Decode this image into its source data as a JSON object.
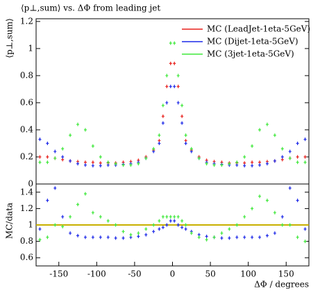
{
  "chart_data": [
    {
      "type": "scatter",
      "title": "⟨p⊥,sum⟩ vs. ΔΦ from leading jet",
      "ylabel": "⟨p⊥,sum⟩",
      "x": [
        -175,
        -165,
        -155,
        -145,
        -135,
        -125,
        -115,
        -105,
        -95,
        -85,
        -75,
        -65,
        -55,
        -45,
        -35,
        -25,
        -17.5,
        -12.5,
        -7.5,
        -2.5,
        2.5,
        7.5,
        12.5,
        17.5,
        25,
        35,
        45,
        55,
        65,
        75,
        85,
        95,
        105,
        115,
        125,
        135,
        145,
        155,
        165,
        175
      ],
      "series": [
        {
          "name": "MC (LeadJet-1eta-5GeV)",
          "color": "#e8201c",
          "values": [
            0.2,
            0.2,
            0.19,
            0.18,
            0.17,
            0.165,
            0.16,
            0.16,
            0.155,
            0.155,
            0.155,
            0.16,
            0.165,
            0.175,
            0.2,
            0.25,
            0.32,
            0.5,
            0.72,
            0.89,
            0.89,
            0.72,
            0.5,
            0.32,
            0.25,
            0.2,
            0.175,
            0.165,
            0.16,
            0.155,
            0.155,
            0.155,
            0.16,
            0.16,
            0.165,
            0.17,
            0.18,
            0.19,
            0.2,
            0.2
          ]
        },
        {
          "name": "MC (Dijet-1eta-5GeV)",
          "color": "#1c28e8",
          "values": [
            0.33,
            0.3,
            0.24,
            0.2,
            0.17,
            0.15,
            0.14,
            0.135,
            0.135,
            0.14,
            0.14,
            0.145,
            0.15,
            0.16,
            0.19,
            0.24,
            0.3,
            0.45,
            0.6,
            0.72,
            0.72,
            0.6,
            0.45,
            0.3,
            0.24,
            0.19,
            0.16,
            0.15,
            0.145,
            0.14,
            0.14,
            0.135,
            0.135,
            0.14,
            0.15,
            0.17,
            0.2,
            0.24,
            0.3,
            0.33
          ]
        },
        {
          "name": "MC (3jet-1eta-5GeV)",
          "color": "#3ee83a",
          "values": [
            0.16,
            0.16,
            0.19,
            0.26,
            0.36,
            0.44,
            0.4,
            0.28,
            0.2,
            0.16,
            0.15,
            0.14,
            0.14,
            0.15,
            0.19,
            0.26,
            0.36,
            0.58,
            0.8,
            1.04,
            1.04,
            0.8,
            0.58,
            0.36,
            0.26,
            0.19,
            0.15,
            0.14,
            0.14,
            0.15,
            0.16,
            0.2,
            0.28,
            0.4,
            0.44,
            0.36,
            0.26,
            0.19,
            0.16,
            0.16
          ]
        }
      ],
      "xlim": [
        -180,
        180
      ],
      "ylim": [
        0,
        1.22
      ],
      "yticks": [
        0,
        0.2,
        0.4,
        0.6,
        0.8,
        1,
        1.2
      ],
      "legend": "upper right"
    },
    {
      "type": "scatter",
      "ylabel": "MC/data",
      "xlabel": "ΔΦ / degrees",
      "x": [
        -175,
        -165,
        -155,
        -145,
        -135,
        -125,
        -115,
        -105,
        -95,
        -85,
        -75,
        -65,
        -55,
        -45,
        -35,
        -25,
        -17.5,
        -12.5,
        -7.5,
        -2.5,
        2.5,
        7.5,
        12.5,
        17.5,
        25,
        35,
        45,
        55,
        65,
        75,
        85,
        95,
        105,
        115,
        125,
        135,
        145,
        155,
        165,
        175
      ],
      "series": [
        {
          "color": "#1c28e8",
          "values": [
            0.95,
            1.3,
            1.45,
            1.1,
            0.9,
            0.87,
            0.85,
            0.85,
            0.85,
            0.85,
            0.84,
            0.84,
            0.85,
            0.86,
            0.88,
            0.92,
            0.95,
            0.97,
            1.0,
            1.05,
            1.05,
            1.0,
            0.97,
            0.95,
            0.92,
            0.88,
            0.86,
            0.85,
            0.84,
            0.84,
            0.85,
            0.85,
            0.85,
            0.85,
            0.87,
            0.9,
            1.1,
            1.45,
            1.3,
            0.95
          ]
        },
        {
          "color": "#3ee83a",
          "values": [
            0.82,
            0.85,
            1.0,
            0.98,
            1.1,
            1.25,
            1.38,
            1.15,
            1.1,
            1.05,
            1.0,
            0.92,
            0.88,
            0.9,
            0.95,
            1.0,
            1.05,
            1.1,
            1.1,
            1.1,
            1.1,
            1.1,
            1.05,
            1.0,
            0.9,
            0.85,
            0.82,
            0.85,
            0.9,
            0.95,
            1.0,
            1.1,
            1.2,
            1.35,
            1.3,
            1.15,
            1.0,
            1.0,
            0.85,
            0.8
          ]
        }
      ],
      "reference": {
        "value": 1,
        "color": "#c8b000"
      },
      "xlim": [
        -180,
        180
      ],
      "ylim": [
        0.5,
        1.5
      ],
      "yticks": [
        0.6,
        0.8,
        1,
        1.2,
        1.4
      ],
      "xticks": [
        -150,
        -100,
        -50,
        0,
        50,
        100,
        150
      ]
    }
  ]
}
